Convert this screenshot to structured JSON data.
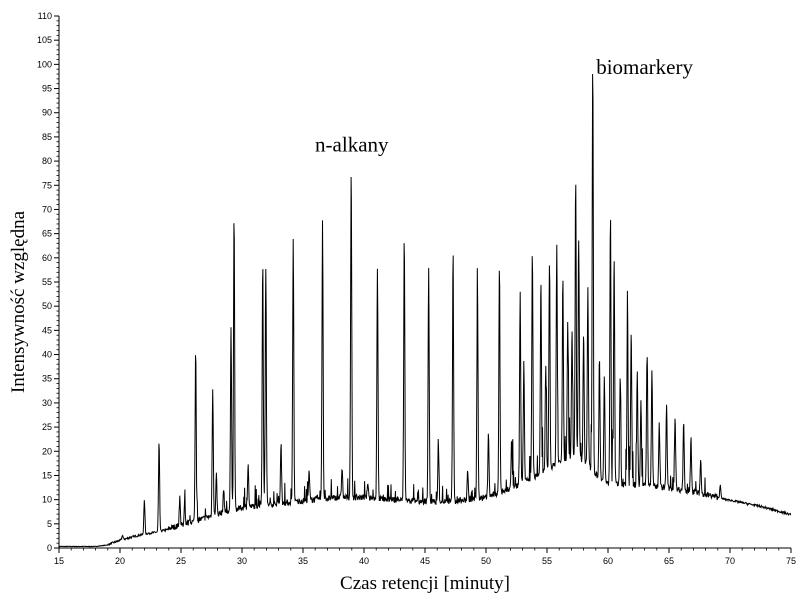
{
  "chart_data": {
    "type": "line",
    "title": "",
    "xlabel": "Czas retencji [minuty]",
    "ylabel": "Intensywność względna",
    "xlim": [
      15,
      75
    ],
    "ylim": [
      0,
      110
    ],
    "x_ticks": [
      15,
      20,
      25,
      30,
      35,
      40,
      45,
      50,
      55,
      60,
      65,
      70,
      75
    ],
    "y_ticks": [
      0,
      5,
      10,
      15,
      20,
      25,
      30,
      35,
      40,
      45,
      50,
      55,
      60,
      65,
      70,
      75,
      80,
      85,
      90,
      95,
      100,
      105,
      110
    ],
    "grid": false,
    "legend": "none",
    "line_color": "#000000",
    "annotations": [
      {
        "text": "n-alkany",
        "x": 39,
        "y": 82
      },
      {
        "text": "biomarkery",
        "x": 63,
        "y": 98
      }
    ],
    "baseline": [
      [
        15,
        0.3
      ],
      [
        18,
        0.3
      ],
      [
        19,
        0.6
      ],
      [
        20,
        1.5
      ],
      [
        21,
        2.2
      ],
      [
        22,
        2.8
      ],
      [
        23,
        3.2
      ],
      [
        24,
        3.8
      ],
      [
        25,
        4.5
      ],
      [
        26,
        5.2
      ],
      [
        27,
        6.0
      ],
      [
        28,
        6.8
      ],
      [
        29,
        7.5
      ],
      [
        30,
        8.1
      ],
      [
        32,
        8.7
      ],
      [
        34,
        9.2
      ],
      [
        36,
        9.8
      ],
      [
        38,
        10.2
      ],
      [
        40,
        10.2
      ],
      [
        42,
        9.8
      ],
      [
        44,
        9.5
      ],
      [
        46,
        9.3
      ],
      [
        48,
        9.5
      ],
      [
        50,
        10.2
      ],
      [
        52,
        12.0
      ],
      [
        54,
        14.5
      ],
      [
        56,
        17.5
      ],
      [
        57,
        18.5
      ],
      [
        58,
        18.0
      ],
      [
        59,
        15.0
      ],
      [
        60,
        13.0
      ],
      [
        62,
        12.8
      ],
      [
        64,
        12.5
      ],
      [
        66,
        11.8
      ],
      [
        68,
        10.8
      ],
      [
        70,
        9.8
      ],
      [
        72,
        8.8
      ],
      [
        73,
        8.2
      ],
      [
        74,
        7.5
      ],
      [
        75,
        6.8
      ]
    ],
    "peaks": [
      [
        20.2,
        2.6
      ],
      [
        22.0,
        9.8
      ],
      [
        23.2,
        21.8
      ],
      [
        24.9,
        10.2
      ],
      [
        25.3,
        9.0
      ],
      [
        26.2,
        40.5
      ],
      [
        27.6,
        33.0
      ],
      [
        27.9,
        15.0
      ],
      [
        28.5,
        12.0
      ],
      [
        29.1,
        45.5
      ],
      [
        29.35,
        69.0
      ],
      [
        30.5,
        17.0
      ],
      [
        31.7,
        58.5
      ],
      [
        31.95,
        58.0
      ],
      [
        33.2,
        21.0
      ],
      [
        34.2,
        63.5
      ],
      [
        35.5,
        15.5
      ],
      [
        36.6,
        67.5
      ],
      [
        38.2,
        16.5
      ],
      [
        38.95,
        78.5
      ],
      [
        40.3,
        13.0
      ],
      [
        41.1,
        58.0
      ],
      [
        43.3,
        64.0
      ],
      [
        45.3,
        57.5
      ],
      [
        46.1,
        21.0
      ],
      [
        47.3,
        61.0
      ],
      [
        48.5,
        16.0
      ],
      [
        49.3,
        54.5
      ],
      [
        50.2,
        23.5
      ],
      [
        51.1,
        58.0
      ],
      [
        52.1,
        22.0
      ],
      [
        52.8,
        53.0
      ],
      [
        53.1,
        38.0
      ],
      [
        53.8,
        61.5
      ],
      [
        54.5,
        55.0
      ],
      [
        54.9,
        37.0
      ],
      [
        55.2,
        58.0
      ],
      [
        55.8,
        62.5
      ],
      [
        56.3,
        56.0
      ],
      [
        56.7,
        47.0
      ],
      [
        57.05,
        45.0
      ],
      [
        57.35,
        76.0
      ],
      [
        57.6,
        63.0
      ],
      [
        58.0,
        44.0
      ],
      [
        58.35,
        53.0
      ],
      [
        58.75,
        100.0
      ],
      [
        59.3,
        39.5
      ],
      [
        59.7,
        35.0
      ],
      [
        60.2,
        69.5
      ],
      [
        60.5,
        60.5
      ],
      [
        61.0,
        35.0
      ],
      [
        61.6,
        48.5
      ],
      [
        61.9,
        45.0
      ],
      [
        62.4,
        36.0
      ],
      [
        62.7,
        30.0
      ],
      [
        63.2,
        40.0
      ],
      [
        63.6,
        37.0
      ],
      [
        64.2,
        26.0
      ],
      [
        64.8,
        29.5
      ],
      [
        65.5,
        27.0
      ],
      [
        66.2,
        26.0
      ],
      [
        66.8,
        23.0
      ],
      [
        67.6,
        18.0
      ],
      [
        69.2,
        13.0
      ]
    ]
  }
}
